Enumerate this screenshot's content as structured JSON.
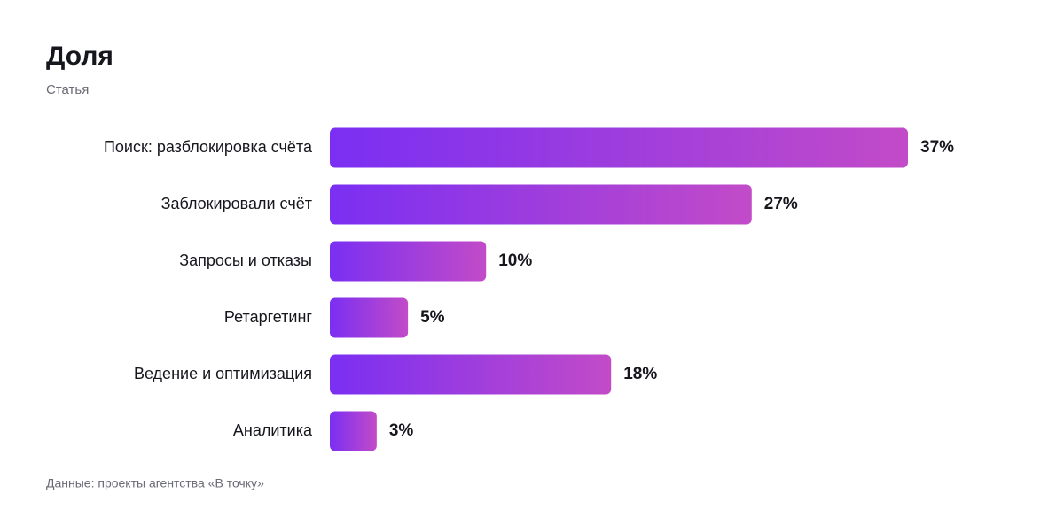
{
  "chart_data": {
    "type": "bar",
    "orientation": "horizontal",
    "title": "Доля",
    "subtitle": "Статья",
    "categories": [
      "Поиск: разблокировка счёта",
      "Заблокировали счёт",
      "Запросы и отказы",
      "Ретаргетинг",
      "Ведение и оптимизация",
      "Аналитика"
    ],
    "values": [
      37,
      27,
      10,
      5,
      18,
      3
    ],
    "value_labels": [
      "37%",
      "27%",
      "10%",
      "5%",
      "18%",
      "3%"
    ],
    "gradient": [
      "#7a2ff2",
      "#c24bc8"
    ],
    "source": "Данные: проекты агентства «В точку»"
  }
}
